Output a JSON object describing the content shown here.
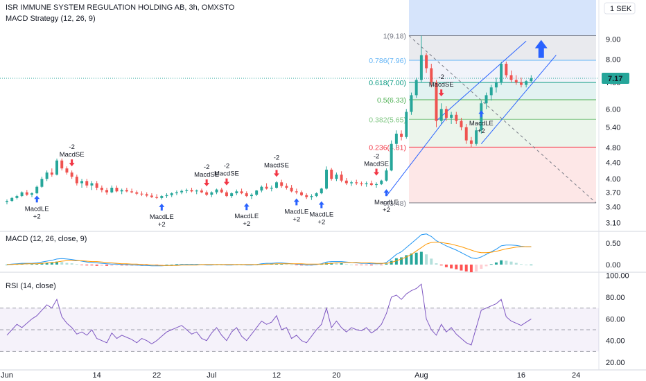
{
  "header": {
    "title": "ISR IMMUNE SYSTEM REGULATION HOLDING AB, 3h, OMXSTO",
    "strategy": "MACD Strategy (12, 26, 9)",
    "currency": "1 SEK"
  },
  "price_badge": {
    "value": "7.17",
    "color": "#26a69a"
  },
  "chart_data": [
    {
      "type": "candlestick",
      "title": "ISR IMMUNE SYSTEM REGULATION HOLDING AB, 3h, OMXSTO",
      "yscale": "log",
      "ylim": [
        2.95,
        11.2
      ],
      "yticks": [
        "9.00",
        "8.00",
        "7.00",
        "6.00",
        "5.40",
        "4.80",
        "4.40",
        "4.00",
        "3.70",
        "3.40",
        "3.10"
      ],
      "xticks": [
        "Jun",
        "14",
        "22",
        "Jul",
        "12",
        "20",
        "Aug",
        "16",
        "24"
      ],
      "xlim": [
        0,
        118
      ],
      "xtick_pos": [
        0,
        18,
        30,
        41,
        54,
        66,
        83,
        103,
        114
      ],
      "last_price": 7.17,
      "colors": {
        "up": "#26a69a",
        "down": "#ef5350"
      },
      "candles": [
        [
          3.5,
          3.55,
          3.45,
          3.52
        ],
        [
          3.52,
          3.6,
          3.5,
          3.58
        ],
        [
          3.58,
          3.65,
          3.55,
          3.62
        ],
        [
          3.62,
          3.72,
          3.6,
          3.7
        ],
        [
          3.7,
          3.75,
          3.62,
          3.65
        ],
        [
          3.65,
          3.7,
          3.6,
          3.68
        ],
        [
          3.68,
          3.85,
          3.66,
          3.82
        ],
        [
          3.82,
          4.05,
          3.8,
          4.0
        ],
        [
          4.0,
          4.2,
          3.95,
          4.15
        ],
        [
          4.15,
          4.25,
          4.05,
          4.1
        ],
        [
          4.1,
          4.5,
          4.08,
          4.45
        ],
        [
          4.45,
          4.5,
          4.2,
          4.25
        ],
        [
          4.25,
          4.3,
          4.1,
          4.15
        ],
        [
          4.15,
          4.2,
          4.0,
          4.05
        ],
        [
          4.05,
          4.1,
          3.85,
          3.9
        ],
        [
          3.9,
          4.0,
          3.8,
          3.95
        ],
        [
          3.95,
          4.0,
          3.8,
          3.85
        ],
        [
          3.85,
          3.95,
          3.75,
          3.9
        ],
        [
          3.9,
          3.95,
          3.75,
          3.8
        ],
        [
          3.8,
          3.85,
          3.7,
          3.75
        ],
        [
          3.75,
          3.8,
          3.65,
          3.7
        ],
        [
          3.7,
          3.85,
          3.68,
          3.8
        ],
        [
          3.8,
          3.85,
          3.7,
          3.72
        ],
        [
          3.72,
          3.78,
          3.66,
          3.75
        ],
        [
          3.75,
          3.8,
          3.7,
          3.72
        ],
        [
          3.72,
          3.78,
          3.68,
          3.7
        ],
        [
          3.7,
          3.74,
          3.64,
          3.67
        ],
        [
          3.67,
          3.72,
          3.62,
          3.66
        ],
        [
          3.66,
          3.7,
          3.6,
          3.63
        ],
        [
          3.63,
          3.68,
          3.58,
          3.6
        ],
        [
          3.6,
          3.66,
          3.56,
          3.58
        ],
        [
          3.58,
          3.64,
          3.55,
          3.62
        ],
        [
          3.62,
          3.68,
          3.58,
          3.64
        ],
        [
          3.64,
          3.7,
          3.6,
          3.68
        ],
        [
          3.68,
          3.74,
          3.64,
          3.7
        ],
        [
          3.7,
          3.76,
          3.66,
          3.73
        ],
        [
          3.73,
          3.78,
          3.68,
          3.75
        ],
        [
          3.75,
          3.8,
          3.7,
          3.72
        ],
        [
          3.72,
          3.76,
          3.66,
          3.74
        ],
        [
          3.74,
          3.78,
          3.68,
          3.7
        ],
        [
          3.7,
          3.74,
          3.62,
          3.65
        ],
        [
          3.65,
          3.72,
          3.6,
          3.7
        ],
        [
          3.7,
          3.78,
          3.66,
          3.76
        ],
        [
          3.76,
          3.8,
          3.68,
          3.7
        ],
        [
          3.7,
          3.74,
          3.6,
          3.62
        ],
        [
          3.62,
          3.7,
          3.58,
          3.68
        ],
        [
          3.68,
          3.76,
          3.64,
          3.72
        ],
        [
          3.72,
          3.78,
          3.66,
          3.68
        ],
        [
          3.68,
          3.72,
          3.6,
          3.62
        ],
        [
          3.62,
          3.68,
          3.56,
          3.65
        ],
        [
          3.65,
          3.75,
          3.62,
          3.74
        ],
        [
          3.74,
          3.85,
          3.7,
          3.82
        ],
        [
          3.82,
          3.9,
          3.76,
          3.78
        ],
        [
          3.78,
          3.85,
          3.72,
          3.8
        ],
        [
          3.8,
          3.95,
          3.78,
          3.92
        ],
        [
          3.92,
          3.98,
          3.8,
          3.84
        ],
        [
          3.84,
          3.9,
          3.76,
          3.8
        ],
        [
          3.8,
          3.86,
          3.7,
          3.72
        ],
        [
          3.72,
          3.78,
          3.66,
          3.7
        ],
        [
          3.7,
          3.74,
          3.62,
          3.64
        ],
        [
          3.64,
          3.68,
          3.56,
          3.6
        ],
        [
          3.6,
          3.66,
          3.54,
          3.62
        ],
        [
          3.62,
          3.7,
          3.6,
          3.68
        ],
        [
          3.68,
          3.8,
          3.66,
          3.78
        ],
        [
          3.78,
          4.3,
          3.76,
          4.22
        ],
        [
          4.22,
          4.26,
          3.96,
          4.0
        ],
        [
          4.0,
          4.15,
          3.95,
          4.1
        ],
        [
          4.1,
          4.18,
          3.92,
          3.96
        ],
        [
          3.96,
          4.02,
          3.86,
          3.9
        ],
        [
          3.9,
          3.96,
          3.84,
          3.92
        ],
        [
          3.92,
          3.98,
          3.86,
          3.9
        ],
        [
          3.9,
          3.94,
          3.84,
          3.88
        ],
        [
          3.88,
          3.94,
          3.82,
          3.9
        ],
        [
          3.9,
          3.96,
          3.84,
          3.86
        ],
        [
          3.86,
          3.92,
          3.8,
          3.88
        ],
        [
          3.88,
          3.98,
          3.86,
          3.96
        ],
        [
          3.96,
          4.25,
          3.94,
          4.2
        ],
        [
          4.2,
          5.0,
          4.18,
          4.9
        ],
        [
          4.9,
          5.3,
          4.8,
          5.2
        ],
        [
          5.2,
          5.3,
          5.0,
          5.1
        ],
        [
          5.1,
          6.0,
          5.05,
          5.9
        ],
        [
          5.9,
          6.6,
          5.8,
          6.5
        ],
        [
          6.5,
          7.2,
          6.4,
          7.1
        ],
        [
          7.1,
          9.18,
          7.0,
          8.2
        ],
        [
          8.2,
          8.3,
          7.4,
          7.6
        ],
        [
          7.6,
          7.8,
          6.8,
          7.0
        ],
        [
          7.0,
          7.1,
          5.4,
          5.6
        ],
        [
          5.6,
          6.2,
          5.5,
          6.0
        ],
        [
          6.0,
          6.1,
          5.6,
          5.7
        ],
        [
          5.7,
          5.9,
          5.5,
          5.8
        ],
        [
          5.8,
          5.9,
          5.5,
          5.6
        ],
        [
          5.6,
          5.7,
          5.3,
          5.4
        ],
        [
          5.4,
          5.5,
          4.9,
          5.0
        ],
        [
          5.0,
          5.1,
          4.8,
          4.9
        ],
        [
          4.9,
          5.4,
          4.85,
          5.3
        ],
        [
          5.3,
          6.3,
          5.2,
          6.2
        ],
        [
          6.2,
          6.6,
          6.0,
          6.5
        ],
        [
          6.5,
          6.9,
          6.3,
          6.8
        ],
        [
          6.8,
          7.2,
          6.6,
          7.0
        ],
        [
          7.0,
          7.9,
          6.9,
          7.8
        ],
        [
          7.8,
          7.9,
          7.2,
          7.3
        ],
        [
          7.3,
          7.5,
          7.0,
          7.1
        ],
        [
          7.1,
          7.3,
          6.9,
          7.0
        ],
        [
          7.0,
          7.2,
          6.8,
          6.9
        ],
        [
          6.9,
          7.1,
          6.8,
          7.05
        ],
        [
          7.05,
          7.3,
          7.0,
          7.17
        ]
      ]
    },
    {
      "type": "line",
      "title": "MACD (12, 26, close, 9)",
      "ylim": [
        -0.18,
        0.78
      ],
      "yticks": [
        "0.50",
        "0.00"
      ],
      "series": [
        {
          "color": "#2196f3",
          "values": [
            0,
            0.01,
            0.02,
            0.03,
            0.03,
            0.03,
            0.04,
            0.06,
            0.08,
            0.1,
            0.13,
            0.14,
            0.13,
            0.12,
            0.1,
            0.08,
            0.06,
            0.05,
            0.04,
            0.03,
            0.02,
            0.01,
            0.01,
            0.0,
            0.0,
            -0.01,
            -0.01,
            -0.02,
            -0.02,
            -0.03,
            -0.03,
            -0.03,
            -0.02,
            -0.02,
            -0.01,
            0.0,
            0.0,
            0.0,
            0.0,
            0.0,
            -0.01,
            -0.01,
            0.0,
            0.0,
            -0.01,
            -0.01,
            0.0,
            0.0,
            -0.01,
            -0.01,
            0.0,
            0.02,
            0.03,
            0.03,
            0.04,
            0.04,
            0.03,
            0.02,
            0.01,
            0.0,
            -0.01,
            -0.01,
            0.0,
            0.02,
            0.06,
            0.07,
            0.07,
            0.07,
            0.06,
            0.05,
            0.04,
            0.03,
            0.03,
            0.02,
            0.02,
            0.02,
            0.05,
            0.14,
            0.24,
            0.3,
            0.4,
            0.5,
            0.6,
            0.7,
            0.72,
            0.66,
            0.56,
            0.5,
            0.44,
            0.39,
            0.34,
            0.28,
            0.22,
            0.16,
            0.14,
            0.18,
            0.24,
            0.3,
            0.36,
            0.44,
            0.46,
            0.46,
            0.45,
            0.43,
            0.42,
            0.42
          ]
        },
        {
          "color": "#ff9800",
          "values": [
            0,
            0.0,
            0.01,
            0.01,
            0.02,
            0.02,
            0.02,
            0.03,
            0.04,
            0.05,
            0.06,
            0.08,
            0.09,
            0.09,
            0.09,
            0.09,
            0.08,
            0.07,
            0.07,
            0.06,
            0.05,
            0.04,
            0.03,
            0.02,
            0.02,
            0.01,
            0.01,
            0.0,
            0.0,
            -0.01,
            -0.01,
            -0.02,
            -0.02,
            -0.02,
            -0.02,
            -0.01,
            -0.01,
            -0.01,
            -0.01,
            0.0,
            0.0,
            0.0,
            0.0,
            0.0,
            0.0,
            0.0,
            0.0,
            0.0,
            0.0,
            0.0,
            0.0,
            0.0,
            0.01,
            0.01,
            0.02,
            0.02,
            0.02,
            0.02,
            0.02,
            0.02,
            0.01,
            0.01,
            0.01,
            0.01,
            0.02,
            0.03,
            0.04,
            0.04,
            0.05,
            0.05,
            0.05,
            0.04,
            0.04,
            0.04,
            0.03,
            0.03,
            0.03,
            0.05,
            0.09,
            0.13,
            0.18,
            0.24,
            0.32,
            0.4,
            0.48,
            0.52,
            0.53,
            0.52,
            0.5,
            0.48,
            0.45,
            0.42,
            0.38,
            0.34,
            0.3,
            0.28,
            0.28,
            0.29,
            0.31,
            0.34,
            0.37,
            0.39,
            0.41,
            0.42,
            0.42,
            0.42
          ]
        }
      ],
      "hist_colors": {
        "up_strong": "#26a69a",
        "up_weak": "#b2dfdb",
        "down_strong": "#ff5252",
        "down_weak": "#ffcdd2"
      }
    },
    {
      "type": "line",
      "title": "RSI (14, close)",
      "ylim": [
        13,
        103
      ],
      "yticks": [
        "100.00",
        "80.00",
        "60.00",
        "40.00",
        "20.00"
      ],
      "bands": [
        30,
        50,
        70
      ],
      "series": [
        {
          "color": "#7e57c2",
          "values": [
            45,
            50,
            55,
            52,
            56,
            60,
            63,
            68,
            73,
            70,
            78,
            62,
            56,
            52,
            46,
            48,
            45,
            50,
            42,
            40,
            38,
            47,
            42,
            45,
            43,
            41,
            38,
            42,
            40,
            37,
            40,
            44,
            48,
            50,
            52,
            54,
            50,
            46,
            48,
            42,
            40,
            47,
            52,
            45,
            40,
            48,
            52,
            44,
            40,
            46,
            52,
            58,
            55,
            57,
            63,
            50,
            52,
            42,
            45,
            40,
            38,
            44,
            50,
            55,
            70,
            52,
            58,
            52,
            48,
            52,
            50,
            49,
            52,
            47,
            50,
            55,
            65,
            80,
            82,
            78,
            83,
            86,
            88,
            92,
            60,
            50,
            45,
            55,
            48,
            52,
            46,
            42,
            38,
            36,
            52,
            68,
            70,
            72,
            74,
            78,
            62,
            58,
            56,
            54,
            57,
            60
          ]
        }
      ]
    }
  ],
  "fibonacci": {
    "levels": [
      {
        "label": "1(9.18)",
        "price": 9.18,
        "color": "#787b86"
      },
      {
        "label": "0.786(7.96)",
        "price": 7.96,
        "color": "#64b5f6"
      },
      {
        "label": "0.618(7.00)",
        "price": 7.0,
        "color": "#089981"
      },
      {
        "label": "0.5(6.33)",
        "price": 6.33,
        "color": "#4caf50"
      },
      {
        "label": "0.382(5.65)",
        "price": 5.65,
        "color": "#81c784"
      },
      {
        "label": "0.236(4.81)",
        "price": 4.81,
        "color": "#f23645"
      },
      {
        "label": "0(3.48)",
        "price": 3.48,
        "color": "#787b86"
      }
    ]
  },
  "signals": {
    "long": [
      {
        "bar": 6,
        "price": 3.72,
        "text": "MacdLE",
        "qty": "+2"
      },
      {
        "bar": 31,
        "price": 3.55,
        "text": "MacdLE",
        "qty": "+2"
      },
      {
        "bar": 48,
        "price": 3.56,
        "text": "MacdLE",
        "qty": "+2"
      },
      {
        "bar": 58,
        "price": 3.66,
        "text": "MacdLE",
        "qty": "+2"
      },
      {
        "bar": 63,
        "price": 3.6,
        "text": "MacdLE",
        "qty": "+2"
      },
      {
        "bar": 76,
        "price": 3.86,
        "text": "MacdLE",
        "qty": "+2"
      },
      {
        "bar": 95,
        "price": 6.1,
        "text": "MacdLE",
        "qty": "+2"
      }
    ],
    "short": [
      {
        "bar": 13,
        "price": 4.2,
        "text": "MacdSE",
        "qty": "-2"
      },
      {
        "bar": 40,
        "price": 3.74,
        "text": "MacdSE",
        "qty": "-2"
      },
      {
        "bar": 44,
        "price": 3.76,
        "text": "MacdSE",
        "qty": "-2"
      },
      {
        "bar": 54,
        "price": 3.95,
        "text": "MacdSE",
        "qty": "-2"
      },
      {
        "bar": 74,
        "price": 3.98,
        "text": "MacdSE",
        "qty": "-2"
      },
      {
        "bar": 87,
        "price": 6.3,
        "text": "MacdSE",
        "qty": "-2"
      }
    ]
  }
}
